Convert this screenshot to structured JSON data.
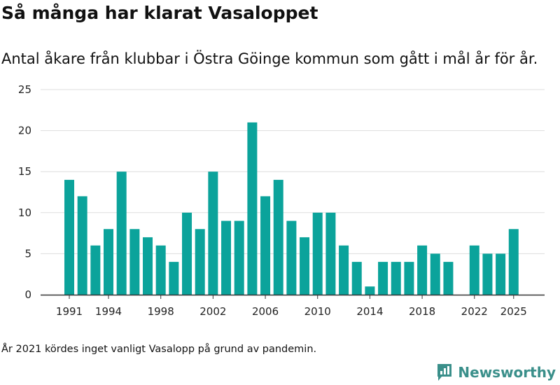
{
  "title": "Så många har klarat Vasaloppet",
  "subtitle": "Antal åkare från klubbar i Östra Göinge kommun som gått i mål år för år.",
  "footnote": "År 2021 kördes inget vanligt Vasalopp på grund av pandemin.",
  "brand": "Newsworthy",
  "colors": {
    "bar": "#0ba39b",
    "grid": "#dddddd",
    "axis": "#333333"
  },
  "chart_data": {
    "type": "bar",
    "title": "Så många har klarat Vasaloppet",
    "xlabel": "",
    "ylabel": "",
    "ylim": [
      0,
      25
    ],
    "yticks": [
      0,
      5,
      10,
      15,
      20,
      25
    ],
    "xticks": [
      1991,
      1994,
      1998,
      2002,
      2006,
      2010,
      2014,
      2018,
      2022,
      2025
    ],
    "grid": true,
    "categories": [
      1991,
      1992,
      1993,
      1994,
      1995,
      1996,
      1997,
      1998,
      1999,
      2000,
      2001,
      2002,
      2003,
      2004,
      2005,
      2006,
      2007,
      2008,
      2009,
      2010,
      2011,
      2012,
      2013,
      2014,
      2015,
      2016,
      2017,
      2018,
      2019,
      2020,
      2021,
      2022,
      2023,
      2024,
      2025
    ],
    "values": [
      14,
      12,
      6,
      8,
      15,
      8,
      7,
      6,
      4,
      10,
      8,
      15,
      9,
      9,
      21,
      12,
      14,
      9,
      7,
      10,
      10,
      6,
      4,
      1,
      4,
      4,
      4,
      6,
      5,
      4,
      null,
      6,
      5,
      5,
      8
    ]
  }
}
